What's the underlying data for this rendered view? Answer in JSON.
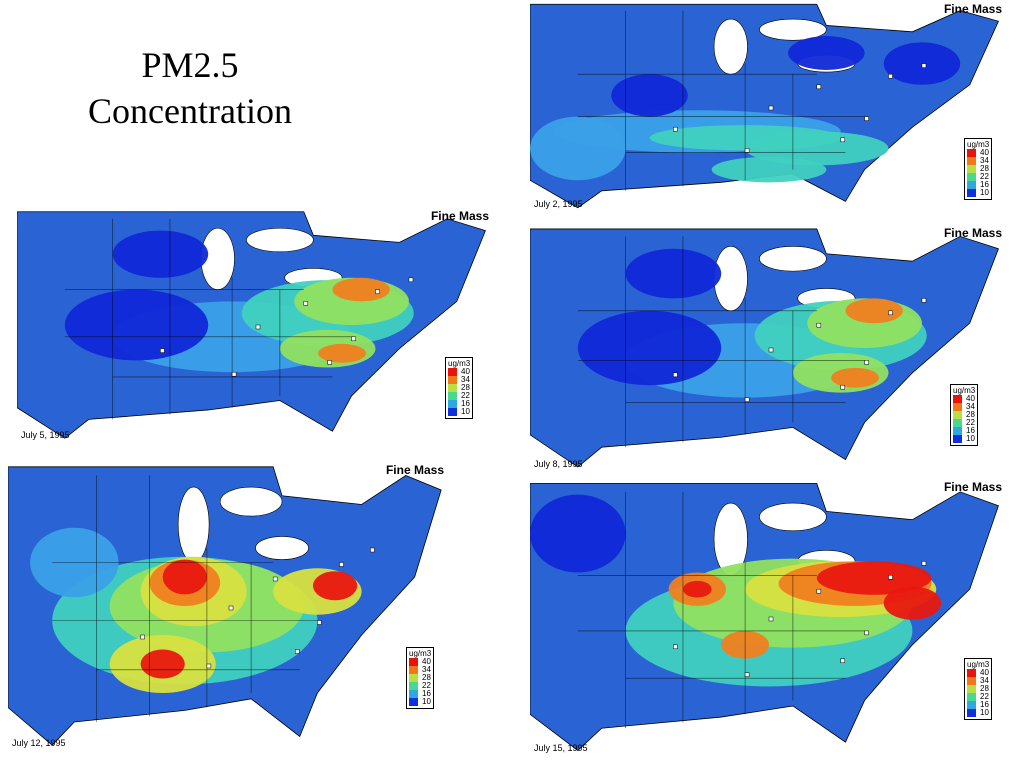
{
  "title_line1": "PM2.5",
  "title_line2": "Concentration",
  "legend": {
    "unit": "ug/m3",
    "levels": [
      {
        "label": "40",
        "color": "#e8140c"
      },
      {
        "label": "34",
        "color": "#f07818"
      },
      {
        "label": "28",
        "color": "#b8e040"
      },
      {
        "label": "22",
        "color": "#48d890"
      },
      {
        "label": "16",
        "color": "#2ea8e0"
      },
      {
        "label": "10",
        "color": "#1030e0"
      }
    ]
  },
  "colors": {
    "base_blue": "#2a64d4",
    "light_blue": "#3aa0e8",
    "cyan": "#40d0c0",
    "green": "#90e060",
    "yellow": "#d8e040",
    "orange": "#f08020",
    "red": "#e81810",
    "dark_blue": "#1028d8",
    "land_outline": "#000000",
    "station": "#ffffff"
  },
  "panels": [
    {
      "id": "p1",
      "header": "Fine Mass",
      "date": "July 2, 1995",
      "level": "low"
    },
    {
      "id": "p2",
      "header": "Fine Mass",
      "date": "July 5, 1995",
      "level": "moderate"
    },
    {
      "id": "p3",
      "header": "Fine Mass",
      "date": "July 8, 1995",
      "level": "moderate"
    },
    {
      "id": "p4",
      "header": "Fine Mass",
      "date": "July 12, 1995",
      "level": "high"
    },
    {
      "id": "p5",
      "header": "Fine Mass",
      "date": "July 15, 1995",
      "level": "very-high"
    }
  ]
}
